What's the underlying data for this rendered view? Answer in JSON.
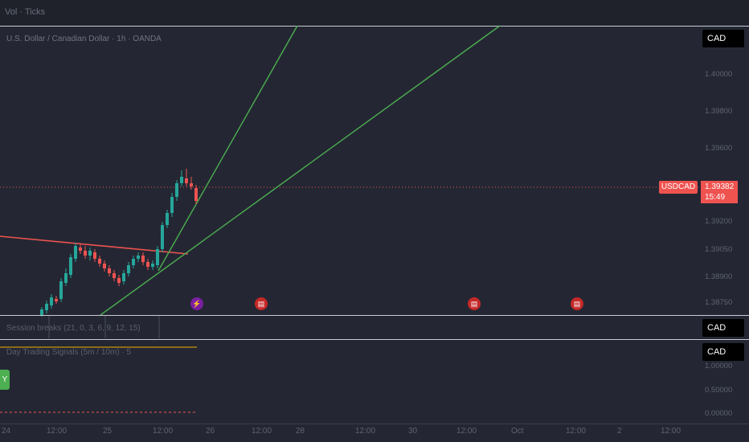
{
  "topbar": {
    "label": "Vol · Ticks"
  },
  "chart": {
    "title": "U.S. Dollar / Canadian Dollar · 1h · OANDA",
    "currency": "CAD",
    "price_ticks": [
      "1.40000",
      "1.39800",
      "1.39600",
      "1.39200",
      "1.39050",
      "1.38900",
      "1.38750"
    ],
    "symbol": "USDCAD",
    "last_price": "1.39382",
    "countdown": "15:49",
    "colors": {
      "up": "#26a69a",
      "down": "#ef5350",
      "trendline_green": "#4caf50",
      "trendline_red": "#ef5350"
    }
  },
  "session_pane": {
    "label": "Session breaks (21, 0, 3, 6, 9, 12, 15)",
    "currency": "CAD"
  },
  "signals_pane": {
    "label": "Day Trading Signals (5m / 10m) · 5",
    "currency": "CAD",
    "ticks": [
      "1.00000",
      "0.50000",
      "0.00000"
    ],
    "buy_label": "Y"
  },
  "x_axis": {
    "ticks": [
      "24",
      "12:00",
      "25",
      "12:00",
      "26",
      "12:00",
      "28",
      "12:00",
      "30",
      "12:00",
      "Oct",
      "12:00",
      "2",
      "12:00"
    ]
  },
  "events": [
    {
      "icon": "lightning-icon"
    },
    {
      "icon": "us-flag-icon"
    },
    {
      "icon": "us-flag-icon"
    },
    {
      "icon": "us-flag-icon"
    }
  ]
}
